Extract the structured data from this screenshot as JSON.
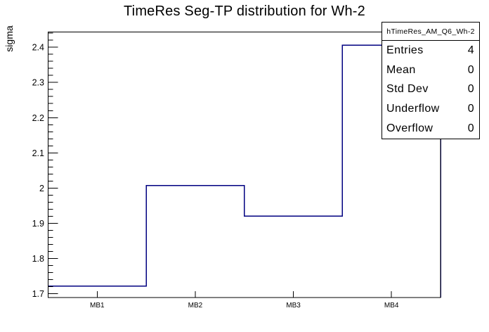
{
  "title": "TimeRes Seg-TP distribution for Wh-2",
  "stats_box": {
    "header": "hTimeRes_AM_Q6_Wh-2",
    "rows": [
      {
        "label": "Entries",
        "value": "4"
      },
      {
        "label": "Mean",
        "value": "0"
      },
      {
        "label": "Std Dev",
        "value": "0"
      },
      {
        "label": "Underflow",
        "value": "0"
      },
      {
        "label": "Overflow",
        "value": "0"
      }
    ]
  },
  "chart_data": {
    "type": "bar",
    "render_style": "root-step-histogram-outline",
    "title": "TimeRes Seg-TP distribution for Wh-2",
    "categories": [
      "MB1",
      "MB2",
      "MB3",
      "MB4"
    ],
    "values": [
      1.721,
      2.007,
      1.92,
      2.406
    ],
    "xlabel": "",
    "ylabel": "sigma",
    "ylim": [
      1.689,
      2.4433
    ],
    "yticks": {
      "major": [
        1.7,
        1.8,
        1.9,
        2.0,
        2.1,
        2.2,
        2.3,
        2.4
      ],
      "labels": [
        "1.7",
        "1.8",
        "1.9",
        "2",
        "2.1",
        "2.2",
        "2.3",
        "2.4"
      ],
      "minor_step": 0.02
    },
    "grid": false,
    "legend": "none",
    "line_color": "#000080",
    "frame_color": "#000000",
    "text_color": "#000000"
  }
}
